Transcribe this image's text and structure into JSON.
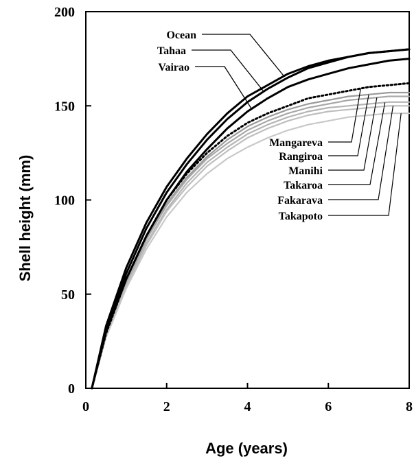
{
  "chart_data": {
    "type": "line",
    "xlabel": "Age (years)",
    "ylabel": "Shell height (mm)",
    "xlim": [
      0,
      8
    ],
    "ylim": [
      0,
      200
    ],
    "xticks": [
      0,
      2,
      4,
      6,
      8
    ],
    "yticks": [
      0,
      50,
      100,
      150,
      200
    ],
    "x": [
      0.15,
      0.5,
      1,
      1.5,
      2,
      2.5,
      3,
      3.5,
      4,
      4.5,
      5,
      5.5,
      6,
      6.5,
      7,
      7.5,
      8
    ],
    "grid": false,
    "legend": "inline labels with leader lines",
    "series": [
      {
        "name": "Ocean",
        "color": "#000000",
        "style": "solid",
        "group": "top",
        "values": [
          0,
          33,
          64,
          88,
          107,
          122,
          135,
          146,
          155,
          161,
          167,
          171,
          174,
          176,
          178,
          179,
          180
        ]
      },
      {
        "name": "Tahaa",
        "color": "#000000",
        "style": "solid",
        "group": "top",
        "values": [
          0,
          31,
          61,
          85,
          104,
          119,
          132,
          143,
          152,
          159,
          165,
          170,
          173,
          176,
          178,
          179,
          180
        ]
      },
      {
        "name": "Vairao",
        "color": "#000000",
        "style": "solid",
        "group": "top",
        "values": [
          0,
          30,
          58,
          81,
          100,
          115,
          127,
          138,
          147,
          154,
          160,
          164,
          167,
          170,
          172,
          174,
          175
        ]
      },
      {
        "name": "Mangareva",
        "color": "#000000",
        "style": "dotted",
        "group": "bottom",
        "values": [
          0,
          29,
          58,
          81,
          100,
          114,
          125,
          134,
          141,
          146,
          150,
          154,
          156,
          158,
          160,
          161,
          162
        ]
      },
      {
        "name": "Rangiroa",
        "color": "#9a9a9a",
        "style": "solid",
        "group": "bottom",
        "values": [
          0,
          29,
          57,
          80,
          98,
          112,
          123,
          132,
          139,
          144,
          148,
          151,
          153,
          155,
          156,
          157,
          157
        ]
      },
      {
        "name": "Manihi",
        "color": "#a8a8a8",
        "style": "solid",
        "group": "bottom",
        "values": [
          0,
          28,
          56,
          79,
          97,
          111,
          122,
          130,
          137,
          142,
          146,
          149,
          151,
          153,
          154,
          155,
          155
        ]
      },
      {
        "name": "Takaroa",
        "color": "#b4b4b4",
        "style": "solid",
        "group": "bottom",
        "values": [
          0,
          28,
          55,
          77,
          95,
          109,
          120,
          128,
          135,
          140,
          144,
          147,
          149,
          150,
          151,
          152,
          152
        ]
      },
      {
        "name": "Fakarava",
        "color": "#bebebe",
        "style": "solid",
        "group": "bottom",
        "values": [
          0,
          28,
          54,
          76,
          94,
          107,
          118,
          126,
          133,
          138,
          142,
          145,
          147,
          148,
          149,
          150,
          150
        ]
      },
      {
        "name": "Takapoto",
        "color": "#c8c8c8",
        "style": "solid",
        "group": "bottom",
        "values": [
          0,
          27,
          53,
          74,
          91,
          104,
          114,
          122,
          128,
          133,
          137,
          140,
          142,
          144,
          145,
          146,
          146
        ]
      }
    ]
  }
}
